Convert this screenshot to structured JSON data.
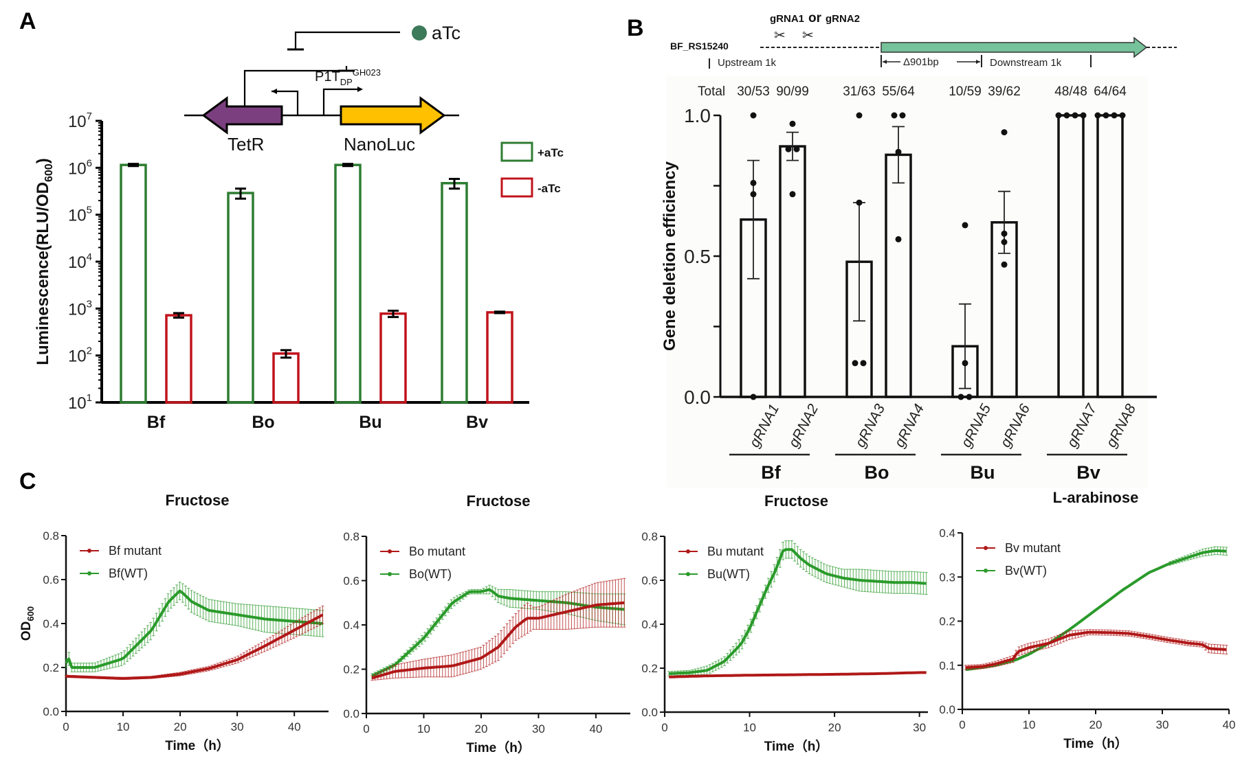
{
  "panels": {
    "a": {
      "label": "A"
    },
    "b": {
      "label": "B"
    },
    "c": {
      "label": "C"
    }
  },
  "diagram_a": {
    "inducer": "aTc",
    "promoter_main": "P1T",
    "promoter_sub": "DP",
    "promoter_sup": "GH023",
    "gene_left": "TetR",
    "gene_right": "NanoLuc",
    "colors": {
      "tetr": "#7b3f7f",
      "nanoluc": "#ffc000",
      "atc": "#3c7a5a"
    }
  },
  "diagram_b": {
    "locus": "BF_RS15240",
    "guides": "gRNA1",
    "or_text": "or",
    "guides2": "gRNA2",
    "upstream": "Upstream 1k",
    "deletion": "Δ901bp",
    "downstream": "Downstream 1k",
    "gene_color": "#76c29b"
  },
  "chart_data": [
    {
      "id": "A",
      "type": "bar",
      "title": "",
      "ylabel": "Luminescence(RLU/OD600)",
      "ylabel_main": "Luminescence(RLU/OD",
      "ylabel_sub": "600",
      "ylabel_end": ")",
      "yscale": "log",
      "ylim": [
        10,
        10000000
      ],
      "yticks": [
        {
          "base": "10",
          "exp": "1"
        },
        {
          "base": "10",
          "exp": "2"
        },
        {
          "base": "10",
          "exp": "3"
        },
        {
          "base": "10",
          "exp": "4"
        },
        {
          "base": "10",
          "exp": "5"
        },
        {
          "base": "10",
          "exp": "6"
        },
        {
          "base": "10",
          "exp": "7"
        }
      ],
      "categories": [
        "Bf",
        "Bo",
        "Bu",
        "Bv"
      ],
      "legend_position": "top-right",
      "series": [
        {
          "name": "+aTc",
          "color": "#2e7d32",
          "values": [
            1150000,
            290000,
            1150000,
            470000
          ],
          "errors": [
            60000,
            70000,
            60000,
            110000
          ]
        },
        {
          "name": "-aTc",
          "color": "#c0141c",
          "values": [
            720,
            110,
            780,
            830
          ],
          "errors": [
            80,
            20,
            120,
            30
          ]
        }
      ]
    },
    {
      "id": "B",
      "type": "bar",
      "ylabel": "Gene deletion efficiency",
      "ylim": [
        0,
        1.0
      ],
      "yticks": [
        "0.0",
        "0.5",
        "1.0"
      ],
      "totals_label": "Total",
      "categories": [
        "gRNA1",
        "gRNA2",
        "gRNA3",
        "gRNA4",
        "gRNA5",
        "gRNA6",
        "gRNA7",
        "gRNA8"
      ],
      "totals": [
        "30/53",
        "90/99",
        "31/63",
        "55/64",
        "10/59",
        "39/62",
        "48/48",
        "64/64"
      ],
      "groups": [
        {
          "name": "Bf",
          "members": [
            0,
            1
          ]
        },
        {
          "name": "Bo",
          "members": [
            2,
            3
          ]
        },
        {
          "name": "Bu",
          "members": [
            4,
            5
          ]
        },
        {
          "name": "Bv",
          "members": [
            6,
            7
          ]
        }
      ],
      "values": [
        0.63,
        0.89,
        0.48,
        0.86,
        0.18,
        0.62,
        1.0,
        1.0
      ],
      "errors": [
        0.21,
        0.05,
        0.21,
        0.1,
        0.15,
        0.11,
        0,
        0
      ],
      "points": [
        [
          1.0,
          0.76,
          0.72,
          0.0
        ],
        [
          0.97,
          0.88,
          0.88,
          0.72
        ],
        [
          1.0,
          0.69,
          0.12,
          0.12
        ],
        [
          1.0,
          1.0,
          0.87,
          0.56
        ],
        [
          0.61,
          0.12,
          0.0,
          0.0
        ],
        [
          0.94,
          0.58,
          0.55,
          0.47
        ],
        [
          1.0,
          1.0,
          1.0,
          1.0
        ],
        [
          1.0,
          1.0,
          1.0,
          1.0
        ]
      ]
    },
    {
      "id": "C1",
      "type": "line",
      "title": "Fructose",
      "xlabel": "Time（h）",
      "ylabel": "OD600",
      "ylabel_main": "OD",
      "ylabel_sub": "600",
      "xlim": [
        0,
        46
      ],
      "ylim": [
        0,
        0.8
      ],
      "xticks": [
        0,
        10,
        20,
        30,
        40
      ],
      "yticks": [
        "0.0",
        "0.2",
        "0.4",
        "0.6",
        "0.8"
      ],
      "legend_position": "top-left",
      "series": [
        {
          "name": "Bf mutant",
          "color": "#b01818",
          "x": [
            0,
            5,
            10,
            15,
            20,
            25,
            30,
            35,
            40,
            45
          ],
          "y": [
            0.16,
            0.155,
            0.15,
            0.155,
            0.17,
            0.195,
            0.235,
            0.3,
            0.37,
            0.44
          ],
          "err": [
            0.005,
            0.005,
            0.005,
            0.005,
            0.008,
            0.01,
            0.015,
            0.025,
            0.035,
            0.04
          ]
        },
        {
          "name": "Bf(WT)",
          "color": "#2a9a2a",
          "x": [
            0,
            0.5,
            1,
            5,
            10,
            15,
            18,
            20,
            22,
            25,
            30,
            35,
            40,
            45
          ],
          "y": [
            0.22,
            0.24,
            0.2,
            0.2,
            0.24,
            0.37,
            0.5,
            0.55,
            0.5,
            0.46,
            0.44,
            0.42,
            0.41,
            0.4
          ],
          "err": [
            0.02,
            0.03,
            0.02,
            0.02,
            0.03,
            0.04,
            0.04,
            0.04,
            0.05,
            0.05,
            0.05,
            0.06,
            0.06,
            0.06
          ]
        }
      ]
    },
    {
      "id": "C2",
      "type": "line",
      "title": "Fructose",
      "xlabel": "Time（h）",
      "ylabel": "",
      "xlim": [
        0,
        46
      ],
      "ylim": [
        0,
        0.8
      ],
      "xticks": [
        0,
        10,
        20,
        30,
        40
      ],
      "yticks": [
        "0.0",
        "0.2",
        "0.4",
        "0.6",
        "0.8"
      ],
      "legend_position": "top-left",
      "series": [
        {
          "name": "Bo mutant",
          "color": "#b01818",
          "x": [
            1,
            5,
            10,
            15,
            20,
            23,
            26,
            28,
            29,
            30,
            35,
            40,
            45
          ],
          "y": [
            0.16,
            0.19,
            0.205,
            0.215,
            0.25,
            0.3,
            0.39,
            0.43,
            0.43,
            0.43,
            0.46,
            0.49,
            0.5
          ],
          "err": [
            0.01,
            0.03,
            0.04,
            0.05,
            0.05,
            0.06,
            0.06,
            0.07,
            0.05,
            0.05,
            0.08,
            0.1,
            0.11
          ]
        },
        {
          "name": "Bo(WT)",
          "color": "#2a9a2a",
          "x": [
            1,
            5,
            10,
            15,
            18,
            20,
            21.5,
            23,
            25,
            30,
            35,
            40,
            45
          ],
          "y": [
            0.17,
            0.22,
            0.34,
            0.5,
            0.55,
            0.55,
            0.56,
            0.53,
            0.52,
            0.51,
            0.5,
            0.48,
            0.47
          ],
          "err": [
            0.01,
            0.01,
            0.02,
            0.02,
            0.01,
            0.01,
            0.02,
            0.03,
            0.04,
            0.04,
            0.05,
            0.06,
            0.07
          ]
        }
      ]
    },
    {
      "id": "C3",
      "type": "line",
      "title": "Fructose",
      "xlabel": "Time（h）",
      "ylabel": "",
      "xlim": [
        0,
        31
      ],
      "ylim": [
        0,
        0.8
      ],
      "xticks": [
        0,
        10,
        20,
        30
      ],
      "yticks": [
        "0.0",
        "0.2",
        "0.4",
        "0.6",
        "0.8"
      ],
      "legend_position": "top-left",
      "series": [
        {
          "name": "Bu mutant",
          "color": "#b01818",
          "x": [
            0.5,
            5,
            10,
            15,
            20,
            25,
            30,
            31
          ],
          "y": [
            0.16,
            0.165,
            0.168,
            0.17,
            0.172,
            0.175,
            0.18,
            0.18
          ],
          "err": [
            0.003,
            0.003,
            0.003,
            0.003,
            0.003,
            0.003,
            0.003,
            0.003
          ]
        },
        {
          "name": "Bu(WT)",
          "color": "#2a9a2a",
          "x": [
            0.5,
            3,
            5,
            7,
            9,
            10,
            11,
            12,
            13,
            14,
            15,
            16,
            17,
            19,
            21,
            23,
            25,
            27,
            29,
            31
          ],
          "y": [
            0.175,
            0.18,
            0.19,
            0.23,
            0.31,
            0.38,
            0.47,
            0.56,
            0.64,
            0.74,
            0.74,
            0.7,
            0.67,
            0.63,
            0.61,
            0.6,
            0.595,
            0.59,
            0.59,
            0.585
          ],
          "err": [
            0.01,
            0.01,
            0.02,
            0.02,
            0.03,
            0.03,
            0.03,
            0.03,
            0.04,
            0.04,
            0.04,
            0.04,
            0.04,
            0.04,
            0.04,
            0.05,
            0.05,
            0.05,
            0.05,
            0.05
          ]
        }
      ]
    },
    {
      "id": "C4",
      "type": "line",
      "title": "L-arabinose",
      "xlabel": "Time（h）",
      "ylabel": "",
      "xlim": [
        0,
        40
      ],
      "ylim": [
        0,
        0.4
      ],
      "xticks": [
        0,
        10,
        20,
        30,
        40
      ],
      "yticks": [
        "0.0",
        "0.1",
        "0.2",
        "0.3",
        "0.4"
      ],
      "legend_position": "top-left",
      "series": [
        {
          "name": "Bv mutant",
          "color": "#b01818",
          "x": [
            0.5,
            3,
            5,
            7.8,
            8.2,
            10,
            13,
            16,
            19,
            22,
            25,
            28,
            31,
            34,
            36,
            37,
            40
          ],
          "y": [
            0.095,
            0.097,
            0.103,
            0.115,
            0.13,
            0.14,
            0.15,
            0.168,
            0.175,
            0.174,
            0.172,
            0.165,
            0.157,
            0.15,
            0.147,
            0.138,
            0.135
          ],
          "err": [
            0.005,
            0.005,
            0.006,
            0.008,
            0.01,
            0.01,
            0.01,
            0.01,
            0.006,
            0.006,
            0.006,
            0.006,
            0.006,
            0.006,
            0.006,
            0.01,
            0.01
          ]
        },
        {
          "name": "Bv(WT)",
          "color": "#2a9a2a",
          "x": [
            0.5,
            3,
            5,
            8,
            10,
            13,
            16,
            20,
            24,
            28,
            31,
            34,
            36,
            38,
            40
          ],
          "y": [
            0.09,
            0.095,
            0.1,
            0.112,
            0.125,
            0.15,
            0.18,
            0.225,
            0.27,
            0.31,
            0.33,
            0.345,
            0.355,
            0.36,
            0.358
          ],
          "err": [
            0.003,
            0.003,
            0.003,
            0.003,
            0.003,
            0.003,
            0.003,
            0.003,
            0.003,
            0.003,
            0.004,
            0.006,
            0.008,
            0.009,
            0.009
          ]
        }
      ]
    }
  ]
}
